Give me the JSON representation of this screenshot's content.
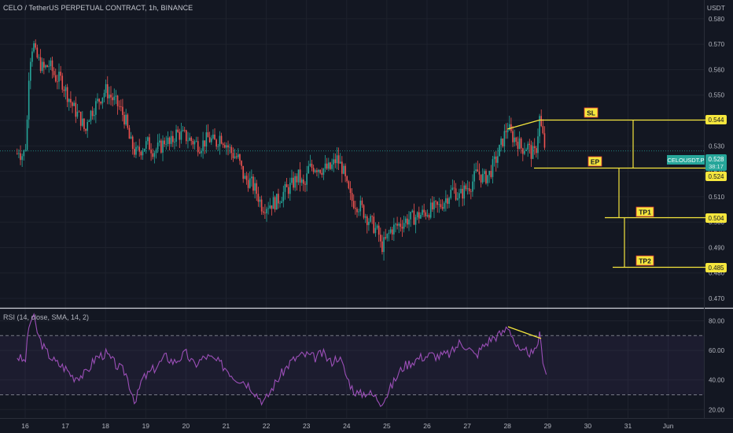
{
  "header": {
    "title": "CELO / TetherUS PERPETUAL CONTRACT, 1h, BINANCE",
    "unit": "USDT"
  },
  "rsi_panel": {
    "label": "RSI (14, close, SMA, 14, 2)"
  },
  "colors": {
    "background": "#131722",
    "grid": "#1e222d",
    "bull": "#26a69a",
    "bear": "#ef5350",
    "annotation": "#f5e63d",
    "rsi_line": "#9c4fb8",
    "rsi_band": "#7e57c2",
    "price_tag": "#26a69a"
  },
  "chart_data": [
    {
      "type": "candlestick",
      "title": "CELO / TetherUS PERPETUAL CONTRACT, 1h, BINANCE",
      "x_ticks": [
        "16",
        "17",
        "18",
        "19",
        "20",
        "21",
        "22",
        "23",
        "24",
        "25",
        "26",
        "27",
        "28",
        "29",
        "30",
        "31",
        "Jun"
      ],
      "y_ticks": [
        "0.580",
        "0.570",
        "0.560",
        "0.550",
        "0.540",
        "0.530",
        "0.520",
        "0.510",
        "0.500",
        "0.490",
        "0.480",
        "0.470"
      ],
      "ylim": [
        0.4666,
        0.5874
      ],
      "anchors": [
        [
          15.8,
          0.527
        ],
        [
          15.85,
          0.529
        ],
        [
          15.9,
          0.526
        ],
        [
          15.95,
          0.527
        ],
        [
          16.0,
          0.528
        ],
        [
          16.05,
          0.54
        ],
        [
          16.1,
          0.562
        ],
        [
          16.15,
          0.567
        ],
        [
          16.2,
          0.571
        ],
        [
          16.25,
          0.566
        ],
        [
          16.35,
          0.563
        ],
        [
          16.45,
          0.56
        ],
        [
          16.6,
          0.562
        ],
        [
          16.75,
          0.557
        ],
        [
          16.9,
          0.556
        ],
        [
          17.0,
          0.552
        ],
        [
          17.2,
          0.545
        ],
        [
          17.4,
          0.54
        ],
        [
          17.5,
          0.535
        ],
        [
          17.55,
          0.541
        ],
        [
          17.75,
          0.546
        ],
        [
          18.0,
          0.552
        ],
        [
          18.2,
          0.548
        ],
        [
          18.35,
          0.545
        ],
        [
          18.5,
          0.54
        ],
        [
          18.6,
          0.532
        ],
        [
          18.75,
          0.527
        ],
        [
          18.9,
          0.529
        ],
        [
          19.05,
          0.531
        ],
        [
          19.2,
          0.528
        ],
        [
          19.4,
          0.53
        ],
        [
          19.5,
          0.533
        ],
        [
          19.6,
          0.53
        ],
        [
          19.75,
          0.535
        ],
        [
          19.95,
          0.534
        ],
        [
          20.15,
          0.532
        ],
        [
          20.35,
          0.53
        ],
        [
          20.55,
          0.533
        ],
        [
          20.75,
          0.531
        ],
        [
          20.85,
          0.534
        ],
        [
          21.0,
          0.531
        ],
        [
          21.15,
          0.527
        ],
        [
          21.3,
          0.525
        ],
        [
          21.45,
          0.517
        ],
        [
          21.6,
          0.516
        ],
        [
          21.75,
          0.512
        ],
        [
          21.9,
          0.506
        ],
        [
          22.05,
          0.507
        ],
        [
          22.25,
          0.508
        ],
        [
          22.45,
          0.512
        ],
        [
          22.6,
          0.514
        ],
        [
          22.8,
          0.518
        ],
        [
          22.95,
          0.513
        ],
        [
          23.05,
          0.521
        ],
        [
          23.2,
          0.522
        ],
        [
          23.4,
          0.521
        ],
        [
          23.6,
          0.521
        ],
        [
          23.75,
          0.525
        ],
        [
          23.9,
          0.521
        ],
        [
          24.0,
          0.514
        ],
        [
          24.1,
          0.509
        ],
        [
          24.25,
          0.507
        ],
        [
          24.35,
          0.506
        ],
        [
          24.5,
          0.502
        ],
        [
          24.65,
          0.499
        ],
        [
          24.8,
          0.495
        ],
        [
          24.85,
          0.49
        ],
        [
          24.95,
          0.492
        ],
        [
          25.1,
          0.497
        ],
        [
          25.3,
          0.499
        ],
        [
          25.5,
          0.501
        ],
        [
          25.7,
          0.502
        ],
        [
          25.85,
          0.503
        ],
        [
          26.1,
          0.505
        ],
        [
          26.3,
          0.506
        ],
        [
          26.5,
          0.51
        ],
        [
          26.65,
          0.513
        ],
        [
          26.8,
          0.51
        ],
        [
          26.95,
          0.513
        ],
        [
          27.1,
          0.515
        ],
        [
          27.25,
          0.52
        ],
        [
          27.4,
          0.517
        ],
        [
          27.55,
          0.519
        ],
        [
          27.75,
          0.526
        ],
        [
          27.9,
          0.533
        ],
        [
          28.0,
          0.538
        ],
        [
          28.1,
          0.534
        ],
        [
          28.25,
          0.532
        ],
        [
          28.35,
          0.529
        ],
        [
          28.5,
          0.53
        ],
        [
          28.6,
          0.527
        ],
        [
          28.7,
          0.527
        ],
        [
          28.8,
          0.541
        ],
        [
          28.85,
          0.536
        ],
        [
          28.95,
          0.528
        ]
      ],
      "rsi_ticks": [
        "80.00",
        "60.00",
        "40.00",
        "20.00"
      ],
      "rsi_ylim": [
        14.3,
        87.7
      ],
      "rsi_bands": [
        70,
        30
      ],
      "rsi_anchors": [
        [
          15.8,
          56
        ],
        [
          16.0,
          52
        ],
        [
          16.1,
          78
        ],
        [
          16.2,
          83
        ],
        [
          16.35,
          68
        ],
        [
          16.5,
          60
        ],
        [
          16.75,
          52
        ],
        [
          17.0,
          48
        ],
        [
          17.2,
          42
        ],
        [
          17.5,
          44
        ],
        [
          17.75,
          55
        ],
        [
          18.0,
          58
        ],
        [
          18.3,
          49
        ],
        [
          18.5,
          45
        ],
        [
          18.65,
          32
        ],
        [
          18.75,
          25
        ],
        [
          18.9,
          40
        ],
        [
          19.1,
          45
        ],
        [
          19.3,
          50
        ],
        [
          19.5,
          56
        ],
        [
          19.7,
          52
        ],
        [
          20.0,
          58
        ],
        [
          20.2,
          50
        ],
        [
          20.5,
          56
        ],
        [
          20.75,
          53
        ],
        [
          21.0,
          48
        ],
        [
          21.2,
          42
        ],
        [
          21.4,
          40
        ],
        [
          21.6,
          36
        ],
        [
          21.8,
          29
        ],
        [
          21.95,
          25
        ],
        [
          22.2,
          37
        ],
        [
          22.4,
          45
        ],
        [
          22.6,
          52
        ],
        [
          22.8,
          56
        ],
        [
          23.0,
          57
        ],
        [
          23.2,
          55
        ],
        [
          23.4,
          58
        ],
        [
          23.6,
          52
        ],
        [
          23.8,
          56
        ],
        [
          23.9,
          50
        ],
        [
          24.0,
          42
        ],
        [
          24.15,
          34
        ],
        [
          24.3,
          30
        ],
        [
          24.5,
          32
        ],
        [
          24.75,
          28
        ],
        [
          24.85,
          25
        ],
        [
          25.0,
          30
        ],
        [
          25.2,
          40
        ],
        [
          25.4,
          49
        ],
        [
          25.6,
          52
        ],
        [
          25.8,
          55
        ],
        [
          26.1,
          57
        ],
        [
          26.3,
          56
        ],
        [
          26.6,
          58
        ],
        [
          26.8,
          65
        ],
        [
          27.0,
          63
        ],
        [
          27.2,
          56
        ],
        [
          27.4,
          63
        ],
        [
          27.6,
          68
        ],
        [
          27.9,
          72
        ],
        [
          28.0,
          77
        ],
        [
          28.1,
          72
        ],
        [
          28.2,
          64
        ],
        [
          28.35,
          57
        ],
        [
          28.5,
          60
        ],
        [
          28.65,
          56
        ],
        [
          28.8,
          70
        ],
        [
          28.88,
          55
        ],
        [
          28.95,
          46
        ],
        [
          29.0,
          45
        ]
      ]
    }
  ],
  "price_labels": {
    "current_symbol": "CELOUSDT.P",
    "current_price": "0.528",
    "countdown": "38:17",
    "sl_level": "0.544",
    "ep_level": "0.524",
    "tp1_level": "0.504",
    "tp2_level": "0.485"
  },
  "annotations": {
    "sl": "SL",
    "ep": "EP",
    "tp1": "TP1",
    "tp2": "TP2"
  }
}
